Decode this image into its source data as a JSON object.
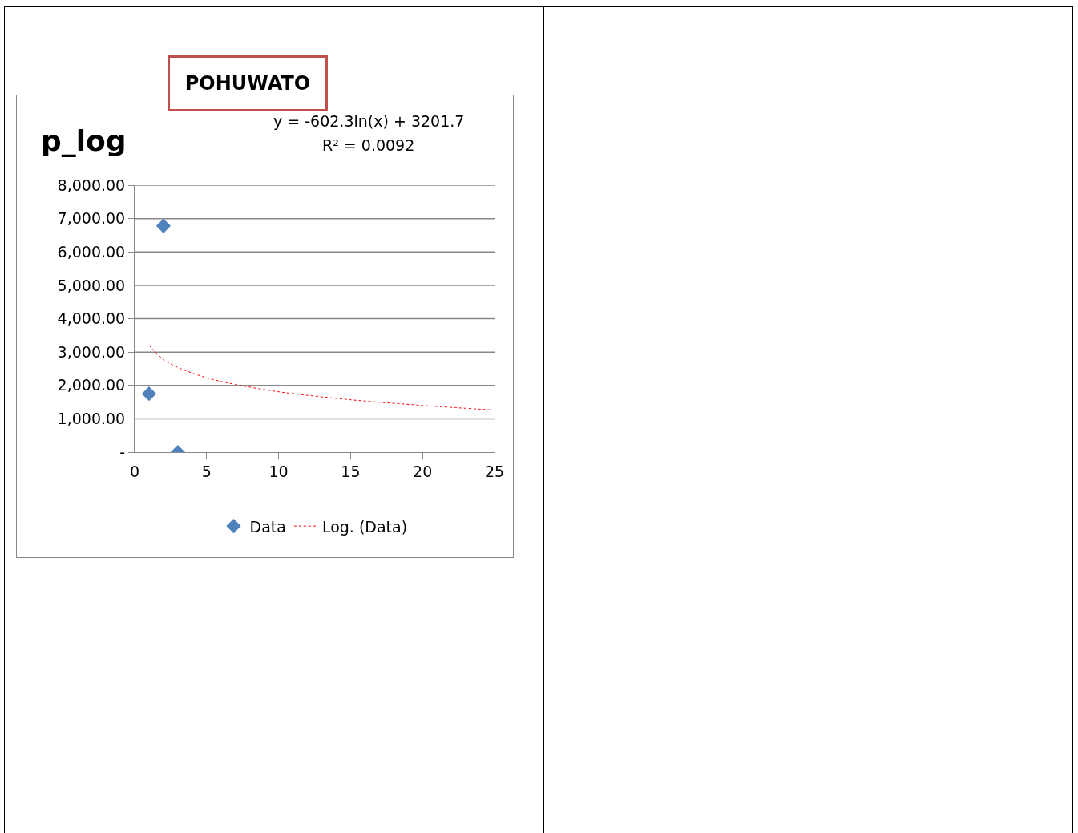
{
  "chart_data": {
    "type": "scatter",
    "title": "p_log",
    "subtitle": "POHUWATO",
    "annotations": [
      "y = -602.3ln(x) + 3201.7",
      "R² = 0.0092"
    ],
    "series": [
      {
        "name": "Data",
        "color": "#4f81bd",
        "marker": "diamond",
        "x": [
          1,
          2,
          3
        ],
        "values": [
          1750,
          6780,
          0
        ]
      },
      {
        "name": "Log. (Data)",
        "type": "line",
        "color": "#ff0000",
        "line_style": "dotted",
        "marker": "none",
        "x": [
          1,
          2,
          3,
          5,
          7,
          10,
          15,
          20,
          25
        ],
        "values": [
          3200,
          2780,
          2540,
          2230,
          2030,
          1810,
          1570,
          1400,
          1260
        ]
      }
    ],
    "xlim": [
      0,
      25
    ],
    "xticks": [
      0,
      5,
      10,
      15,
      20,
      25
    ],
    "ylim": [
      0,
      8000
    ],
    "yticks": [
      {
        "value": 0,
        "label": "-"
      },
      {
        "value": 1000,
        "label": "1,000.00"
      },
      {
        "value": 2000,
        "label": "2,000.00"
      },
      {
        "value": 3000,
        "label": "3,000.00"
      },
      {
        "value": 4000,
        "label": "4,000.00"
      },
      {
        "value": 5000,
        "label": "5,000.00"
      },
      {
        "value": 6000,
        "label": "6,000.00"
      },
      {
        "value": 7000,
        "label": "7,000.00"
      },
      {
        "value": 8000,
        "label": "8,000.00"
      }
    ],
    "grid": "y",
    "legend": "bottom"
  }
}
